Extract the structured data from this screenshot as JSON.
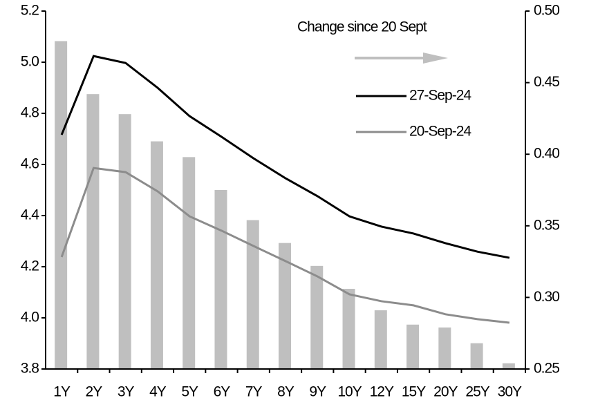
{
  "chart_data": {
    "type": "bar-line",
    "annotation": "Change since 20 Sept",
    "categories": [
      "1Y",
      "2Y",
      "3Y",
      "4Y",
      "5Y",
      "6Y",
      "7Y",
      "8Y",
      "9Y",
      "10Y",
      "12Y",
      "15Y",
      "20Y",
      "25Y",
      "30Y"
    ],
    "bar_series": {
      "color": "#bfbfbf",
      "axis": "y2",
      "values": [
        0.479,
        0.442,
        0.428,
        0.409,
        0.398,
        0.375,
        0.354,
        0.338,
        0.322,
        0.306,
        0.291,
        0.281,
        0.279,
        0.268,
        0.254
      ]
    },
    "series": [
      {
        "name": "27-Sep-24",
        "color": "#000000",
        "values": [
          4.716,
          5.024,
          4.997,
          4.9,
          4.789,
          4.708,
          4.624,
          4.546,
          4.476,
          4.397,
          4.357,
          4.33,
          4.292,
          4.259,
          4.235
        ]
      },
      {
        "name": "20-Sep-24",
        "color": "#8c8c8c",
        "values": [
          4.238,
          4.586,
          4.57,
          4.495,
          4.397,
          4.341,
          4.281,
          4.222,
          4.162,
          4.092,
          4.065,
          4.049,
          4.014,
          3.995,
          3.981
        ]
      }
    ],
    "ylim": [
      3.8,
      5.2
    ],
    "yticks": [
      3.8,
      {
        "value": 4.0,
        "label": "4.0"
      },
      4.2,
      4.4,
      4.6,
      4.8,
      {
        "value": 5.0,
        "label": "5.0"
      },
      5.2
    ],
    "y2lim": [
      0.25,
      0.5
    ],
    "y2ticks": [
      0.25,
      {
        "value": 0.3,
        "label": "0.30"
      },
      0.35,
      {
        "value": 0.4,
        "label": "0.40"
      },
      0.45,
      {
        "value": 0.5,
        "label": "0.50"
      }
    ],
    "grid": false
  }
}
